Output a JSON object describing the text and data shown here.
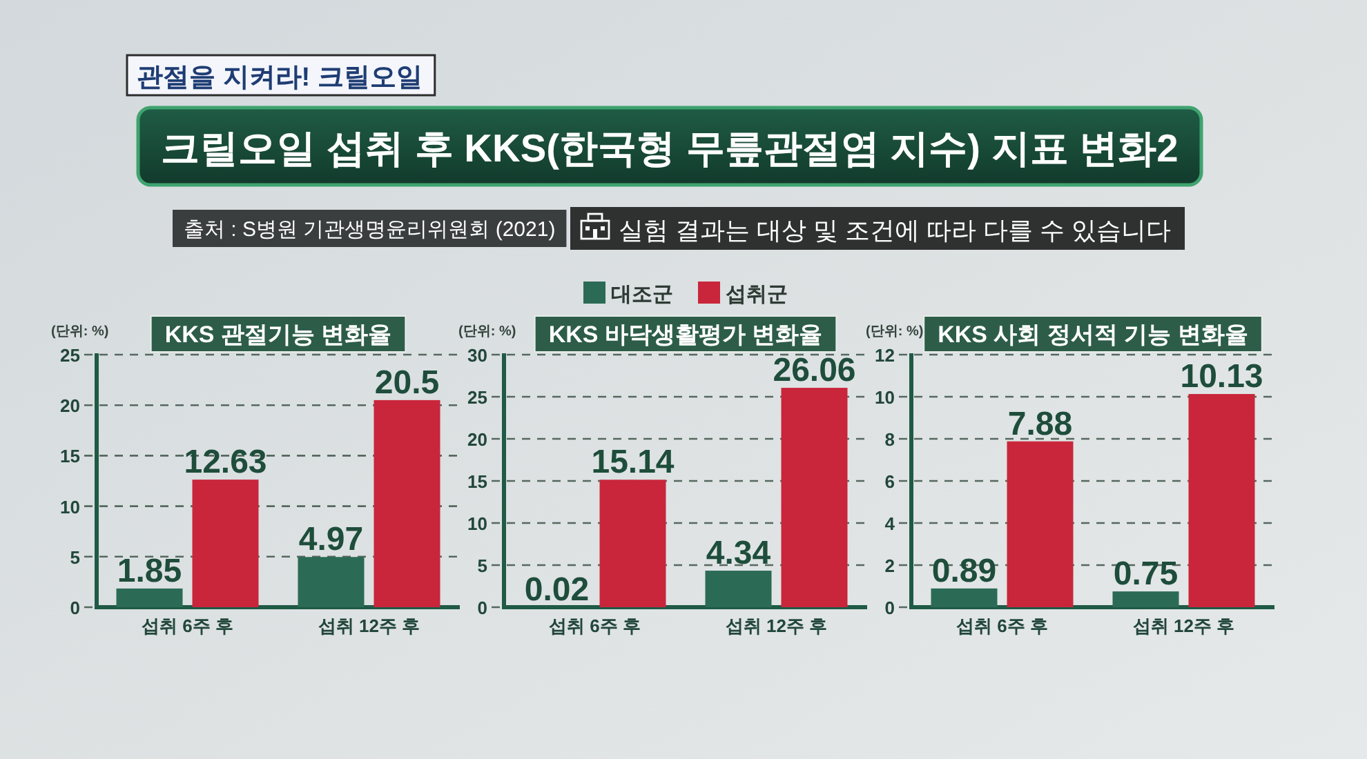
{
  "chart_data": [
    {
      "type": "bar",
      "title": "KKS 관절기능 변화율",
      "ylabel": "(단위: %)",
      "categories": [
        "섭취 6주 후",
        "섭취 12주 후"
      ],
      "series": [
        {
          "color": "#2b6b55",
          "values": [
            1.85,
            4.97
          ]
        },
        {
          "color": "#c9263b",
          "values": [
            12.63,
            20.5
          ]
        }
      ],
      "ylim": [
        0,
        25
      ],
      "yticks": [
        0,
        5,
        10,
        15,
        20,
        25
      ],
      "grid": "y",
      "data_labels": true,
      "annotations": [
        "관절을 지켜라! 크릴오일",
        "크릴오일 섭취 후 KKS(한국형 무릎관절염 지수) 지표 변화2",
        "출처 : S병원 기관생명윤리위원회 (2021)",
        "실험 결과는 대상 및 조건에 따라 다를 수 있습니다"
      ]
    },
    {
      "type": "bar",
      "title": "KKS 바닥생활평가 변화율",
      "ylabel": "(단위: %)",
      "categories": [
        "섭취 6주 후",
        "섭취 12주 후"
      ],
      "series": [
        {
          "name": "대조군",
          "color": "#2b6b55",
          "values": [
            0.02,
            4.34
          ]
        },
        {
          "name": "섭취군",
          "color": "#c9263b",
          "values": [
            15.14,
            26.06
          ]
        }
      ],
      "ylim": [
        0,
        30
      ],
      "yticks": [
        0,
        5,
        10,
        15,
        20,
        25,
        30
      ],
      "grid": "y",
      "legend": "top",
      "data_labels": true
    },
    {
      "type": "bar",
      "title": "KKS 사회 정서적 기능 변화율",
      "ylabel": "(단위: %)",
      "categories": [
        "섭취 6주 후",
        "섭취 12주 후"
      ],
      "series": [
        {
          "color": "#2b6b55",
          "values": [
            0.89,
            0.75
          ]
        },
        {
          "color": "#c9263b",
          "values": [
            7.88,
            10.13
          ]
        }
      ],
      "ylim": [
        0,
        12
      ],
      "yticks": [
        0,
        2,
        4,
        6,
        8,
        10,
        12
      ],
      "grid": "y",
      "data_labels": true
    }
  ]
}
